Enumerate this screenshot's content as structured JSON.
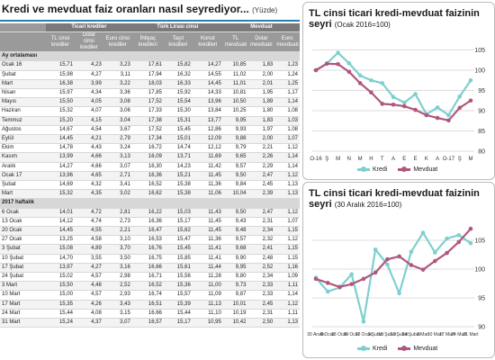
{
  "title": "Kredi ve mevduat faiz oranları nasıl seyrediyor...",
  "unit": "(Yüzde)",
  "table": {
    "groups": [
      "Ticari krediler",
      "Türk Lirası cinsi",
      "Mevduat"
    ],
    "columns": [
      "TL cinsi krediler",
      "Dolar cinsi krediler",
      "Euro cinsi krediler",
      "İhtiyaç kredileri",
      "Taşıt kredileri",
      "Konut kredileri",
      "TL mevduatı",
      "Dolar mevduatı",
      "Euro mevduatı"
    ],
    "sections": [
      {
        "label": "Ay ortalaması",
        "rows": [
          [
            "Ocak 16",
            "15,71",
            "4,23",
            "3,23",
            "17,61",
            "15,82",
            "14,27",
            "10,85",
            "1,83",
            "1,23"
          ],
          [
            "Şubat",
            "15,98",
            "4,27",
            "3,11",
            "17,94",
            "16,32",
            "14,55",
            "11,02",
            "2,00",
            "1,24"
          ],
          [
            "Mart",
            "16,38",
            "3,99",
            "3,22",
            "18,03",
            "16,33",
            "14,45",
            "11,01",
            "2,01",
            "1,25"
          ],
          [
            "Nisan",
            "15,97",
            "4,34",
            "3,36",
            "17,85",
            "15,92",
            "14,33",
            "10,81",
            "1,95",
            "1,17"
          ],
          [
            "Mayıs",
            "15,50",
            "4,05",
            "3,08",
            "17,52",
            "15,54",
            "13,96",
            "10,50",
            "1,89",
            "1,14"
          ],
          [
            "Haziran",
            "15,32",
            "4,07",
            "3,06",
            "17,33",
            "15,30",
            "13,84",
            "10,25",
            "1,80",
            "1,08"
          ],
          [
            "Temmuz",
            "15,20",
            "4,15",
            "3,04",
            "17,38",
            "15,31",
            "13,77",
            "9,95",
            "1,83",
            "1,03"
          ],
          [
            "Ağustos",
            "14,67",
            "4,54",
            "3,67",
            "17,52",
            "15,45",
            "12,86",
            "9,93",
            "1,97",
            "1,08"
          ],
          [
            "Eylül",
            "14,45",
            "4,21",
            "2,79",
            "17,34",
            "15,01",
            "12,09",
            "9,88",
            "2,00",
            "1,07"
          ],
          [
            "Ekim",
            "14,78",
            "4,43",
            "3,24",
            "16,72",
            "14,74",
            "12,12",
            "9,79",
            "2,21",
            "1,12"
          ],
          [
            "Kasım",
            "13,99",
            "4,66",
            "3,13",
            "16,09",
            "13,71",
            "11,69",
            "9,65",
            "2,26",
            "1,14"
          ],
          [
            "Aralık",
            "14,27",
            "4,66",
            "3,07",
            "16,30",
            "14,23",
            "11,42",
            "9,57",
            "2,29",
            "1,14"
          ],
          [
            "Ocak 17",
            "13,96",
            "4,65",
            "2,71",
            "16,36",
            "15,21",
            "11,45",
            "9,50",
            "2,47",
            "1,12"
          ],
          [
            "Şubat",
            "14,69",
            "4,32",
            "3,41",
            "16,52",
            "15,38",
            "11,36",
            "9,84",
            "2,45",
            "1,13"
          ],
          [
            "Mart",
            "15,32",
            "4,35",
            "3,02",
            "16,62",
            "15,38",
            "11,06",
            "10,04",
            "2,39",
            "1,13"
          ]
        ]
      },
      {
        "label": "2017 haftalık",
        "rows": [
          [
            "6 Ocak",
            "14,01",
            "4,72",
            "2,81",
            "16,22",
            "15,03",
            "11,43",
            "9,50",
            "2,47",
            "1,12"
          ],
          [
            "13 Ocak",
            "14,12",
            "4,74",
            "2,73",
            "16,36",
            "15,17",
            "11,45",
            "9,43",
            "2,31",
            "1,07"
          ],
          [
            "20 Ocak",
            "14,45",
            "4,55",
            "2,21",
            "16,47",
            "15,62",
            "11,45",
            "9,48",
            "2,34",
            "1,15"
          ],
          [
            "27 Ocak",
            "13,25",
            "4,58",
            "3,10",
            "16,53",
            "15,47",
            "11,36",
            "9,57",
            "2,32",
            "1,12"
          ],
          [
            "3 Şubat",
            "15,08",
            "4,89",
            "3,70",
            "16,76",
            "15,45",
            "11,41",
            "9,68",
            "2,41",
            "1,15"
          ],
          [
            "10 Şubat",
            "14,70",
            "3,55",
            "3,50",
            "16,75",
            "15,85",
            "11,41",
            "9,90",
            "2,48",
            "1,15"
          ],
          [
            "17 Şubat",
            "13,97",
            "4,27",
            "3,16",
            "16,66",
            "15,61",
            "11,44",
            "9,95",
            "2,52",
            "1,16"
          ],
          [
            "24 Şubat",
            "15,02",
            "4,57",
            "2,98",
            "16,71",
            "15,56",
            "11,28",
            "9,80",
            "2,34",
            "1,09"
          ],
          [
            "3 Mart",
            "15,50",
            "4,48",
            "2,52",
            "16,52",
            "15,36",
            "11,00",
            "9,73",
            "2,33",
            "1,11"
          ],
          [
            "10 Mart",
            "15,00",
            "4,57",
            "2,93",
            "16,74",
            "15,57",
            "11,09",
            "9,87",
            "2,33",
            "1,14"
          ],
          [
            "17 Mart",
            "15,35",
            "4,26",
            "3,43",
            "16,51",
            "15,39",
            "11,13",
            "10,01",
            "2,45",
            "1,12"
          ],
          [
            "24 Mart",
            "15,44",
            "4,08",
            "3,15",
            "16,66",
            "15,44",
            "11,10",
            "10,19",
            "2,31",
            "1,11"
          ],
          [
            "31 Mart",
            "15,24",
            "4,37",
            "3,07",
            "16,57",
            "15,17",
            "10,95",
            "10,42",
            "2,50",
            "1,13"
          ]
        ]
      }
    ]
  },
  "chart_data": [
    {
      "type": "line",
      "title": "TL cinsi ticari kredi-mevduat faizinin seyri",
      "unit": "(Ocak 2016=100)",
      "x": [
        "O-16",
        "Ş",
        "M",
        "N",
        "M",
        "H",
        "T",
        "A",
        "E",
        "E",
        "K",
        "A",
        "O-17",
        "Ş",
        "M"
      ],
      "x_tick_labels": [
        "O-16",
        "Ş",
        "M",
        "N",
        "M",
        "H",
        "T",
        "A",
        "E",
        "E",
        "K",
        "A",
        "O-17",
        "Ş",
        "M"
      ],
      "ylim": [
        80,
        110
      ],
      "yticks": [
        80,
        85,
        90,
        95,
        100,
        105
      ],
      "series": [
        {
          "name": "Kredi",
          "color": "#7ecfcf",
          "values": [
            100.0,
            101.7,
            104.3,
            101.7,
            98.7,
            97.5,
            96.8,
            93.4,
            92.0,
            94.1,
            89.1,
            90.8,
            88.9,
            93.5,
            97.5
          ]
        },
        {
          "name": "Mevduat",
          "color": "#b0577e",
          "values": [
            100.0,
            101.6,
            101.5,
            99.6,
            96.8,
            94.5,
            91.7,
            91.5,
            91.1,
            90.2,
            88.9,
            88.2,
            87.6,
            90.7,
            92.5
          ]
        }
      ]
    },
    {
      "type": "line",
      "title": "TL cinsi ticari kredi-mevduat faizinin seyri",
      "unit": "(30 Aralık 2016=100)",
      "x": [
        "30 Aralık",
        "6 Ocak",
        "13 Ocak",
        "20 Ocak",
        "27 Ocak",
        "3 Şubat",
        "10 Şubat",
        "17 Şubat",
        "24 Şubat",
        "3 Mart",
        "10 Mart",
        "17 Mart",
        "24 Mart",
        "31 Mart"
      ],
      "x_tick_labels": [
        "30 Aralık",
        "6 Ocak",
        "13 Ocak",
        "20 Ocak",
        "27 Ocak",
        "3 Şubat",
        "10 Şubat",
        "17 Şubat",
        "24 Şubat",
        "3 Mart",
        "10 Mart",
        "17 Mart",
        "24 Mart",
        "31 Mart"
      ],
      "ylim": [
        90,
        110
      ],
      "yticks": [
        90,
        95,
        100,
        105
      ],
      "series": [
        {
          "name": "Kredi",
          "color": "#7ecfcf",
          "values": [
            98.5,
            96.1,
            96.8,
            99.1,
            90.9,
            103.4,
            100.8,
            95.8,
            103.0,
            106.3,
            102.9,
            105.3,
            105.9,
            104.5
          ]
        },
        {
          "name": "Mevduat",
          "color": "#b0577e",
          "values": [
            98.3,
            97.6,
            96.9,
            97.4,
            98.3,
            99.4,
            101.7,
            102.2,
            100.7,
            99.9,
            101.4,
            102.8,
            104.7,
            107.0
          ]
        }
      ]
    }
  ]
}
